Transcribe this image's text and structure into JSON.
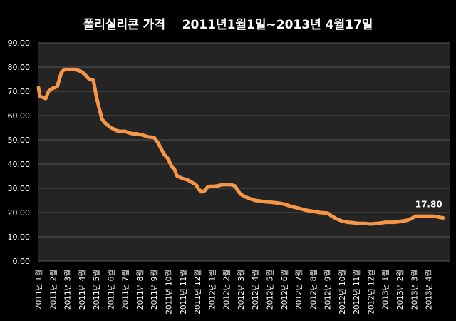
{
  "chart_data": {
    "type": "line",
    "title": "폴리실리콘 가격    2011년1월1일~2013년 4월17일",
    "xlabel": "",
    "ylabel": "",
    "ylim": [
      0,
      90
    ],
    "y_ticks": [
      "0.00",
      "10.00",
      "20.00",
      "30.00",
      "40.00",
      "50.00",
      "60.00",
      "70.00",
      "80.00",
      "90.00"
    ],
    "x_tick_labels": [
      "2011년 1월",
      "2011년 2월",
      "2011년 3월",
      "2011년 4월",
      "2011년 5월",
      "2011년 6월",
      "2011년 7월",
      "2011년 8월",
      "2011년 9월",
      "2011년 10월",
      "2011년 11월",
      "2011년 12월",
      "2012년 1월",
      "2012년 2월",
      "2012년 3월",
      "2012년 4월",
      "2012년 5월",
      "2012년 6월",
      "2012년 7월",
      "2012년 8월",
      "2012년 9월",
      "2012년 10월",
      "2012년 11월",
      "2012년 12월",
      "2013년 1월",
      "2013년 2월",
      "2013년 3월",
      "2013년 4월"
    ],
    "grid": true,
    "annotations": [
      {
        "text": "17.80",
        "x": 27.5,
        "y": 17.8
      }
    ],
    "colors": {
      "line": "#F79646",
      "background": "#242424",
      "grid": "#555555",
      "text": "#FFFFFF"
    },
    "series": [
      {
        "x": [
          0,
          0.1,
          0.3,
          0.5,
          0.7,
          0.9,
          1.1,
          1.3,
          1.6,
          1.8,
          2.0,
          2.2,
          2.5,
          2.8,
          3.0,
          3.2,
          3.5,
          3.8,
          4.0,
          4.2,
          4.4,
          4.6,
          4.8,
          5.0,
          5.2,
          5.4,
          5.6,
          5.8,
          6.0,
          6.2,
          6.5,
          6.8,
          7.0,
          7.2,
          7.6,
          8.0,
          8.3,
          8.7,
          9.0,
          9.2,
          9.4,
          9.6,
          9.8,
          10.0,
          10.3,
          10.6,
          10.9,
          11.1,
          11.3,
          11.5,
          11.7,
          11.9,
          12.1,
          12.4,
          12.7,
          13.0,
          13.3,
          13.6,
          13.8,
          14.0,
          14.3,
          14.6,
          15.0,
          15.3,
          15.6,
          16.0,
          16.5,
          17.0,
          17.5,
          18.0,
          18.5,
          19.0,
          19.5,
          20.0,
          20.3,
          20.6,
          21.0,
          21.4,
          21.8,
          22.2,
          22.6,
          23.0,
          23.4,
          23.8,
          24.0,
          24.3,
          24.6,
          24.9,
          25.2,
          25.5,
          25.8,
          26.1,
          26.4,
          26.7,
          27.0,
          27.3,
          27.6,
          27.8,
          28.0
        ],
        "values": [
          71.5,
          68,
          67.5,
          67,
          70,
          71,
          71.5,
          72,
          78,
          79,
          79,
          79,
          79,
          78.5,
          78,
          77,
          75,
          74.5,
          68,
          63,
          58.5,
          57,
          56,
          55,
          54.5,
          53.8,
          53.5,
          53.5,
          53.5,
          53,
          52.5,
          52.5,
          52.2,
          52,
          51.2,
          51,
          48.5,
          44,
          42,
          39,
          38,
          35,
          34.5,
          34,
          33.5,
          32.5,
          31.5,
          29.5,
          28.5,
          29,
          30.5,
          30.8,
          30.8,
          31,
          31.5,
          31.5,
          31.5,
          31,
          29,
          27.5,
          26.5,
          25.8,
          25,
          24.8,
          24.5,
          24.3,
          24,
          23.5,
          22.5,
          21.8,
          21,
          20.5,
          20,
          19.8,
          18.5,
          17.5,
          16.5,
          16,
          15.8,
          15.5,
          15.5,
          15.3,
          15.5,
          15.8,
          16,
          16,
          16,
          16.2,
          16.5,
          16.8,
          17.5,
          18.5,
          18.5,
          18.5,
          18.5,
          18.5,
          18.3,
          18,
          17.8
        ]
      }
    ]
  }
}
